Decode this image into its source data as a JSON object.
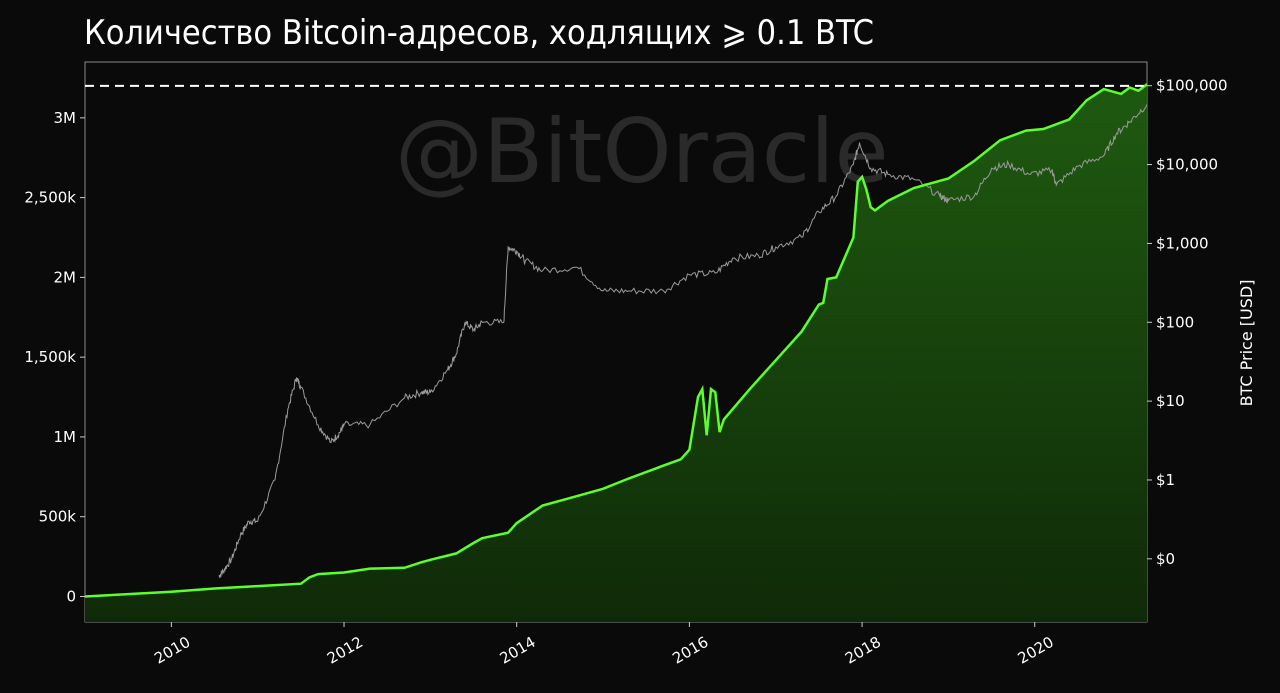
{
  "title": "Количество Bitcoin-адресов, ходлящих ⩾ 0.1 BTC",
  "watermark": "@BitOracle",
  "colors": {
    "background": "#0a0a0a",
    "addresses_line": "#5dff2a",
    "addresses_fill": "#1f5a10",
    "price_line": "#9a9a9a",
    "ath_line": "#ffffff",
    "frame": "#888888"
  },
  "chart_data": {
    "type": "area",
    "title": "Количество Bitcoin-адресов, ходлящих ⩾ 0.1 BTC",
    "x_range": [
      2009.0,
      2021.3
    ],
    "x_ticks": [
      "2010",
      "2012",
      "2014",
      "2016",
      "2018",
      "2020"
    ],
    "y_left": {
      "label": "",
      "range": [
        -160000,
        3350000
      ],
      "ticks": [
        "0",
        "500k",
        "1M",
        "1,500k",
        "2M",
        "2,500k",
        "3M"
      ],
      "tick_values": [
        0,
        500000,
        1000000,
        1500000,
        2000000,
        2500000,
        3000000
      ]
    },
    "y_right": {
      "label": "BTC Price [USD]",
      "scale": "log",
      "ticks": [
        "$0",
        "$1",
        "$10",
        "$100",
        "$1,000",
        "$10,000",
        "$100,000"
      ],
      "tick_values": [
        0.1,
        1,
        10,
        100,
        1000,
        10000,
        100000
      ]
    },
    "ath_level": 3200000,
    "grid": false,
    "series": [
      {
        "key": "addresses",
        "axis": "left",
        "x": [
          2009.0,
          2009.5,
          2010.0,
          2010.5,
          2011.0,
          2011.5,
          2011.6,
          2011.7,
          2012.0,
          2012.3,
          2012.7,
          2012.9,
          2013.0,
          2013.3,
          2013.5,
          2013.6,
          2013.9,
          2014.0,
          2014.3,
          2014.6,
          2015.0,
          2015.3,
          2015.6,
          2015.7,
          2015.9,
          2016.0,
          2016.1,
          2016.15,
          2016.2,
          2016.25,
          2016.3,
          2016.35,
          2016.4,
          2016.7,
          2017.0,
          2017.3,
          2017.5,
          2017.55,
          2017.6,
          2017.7,
          2017.9,
          2017.95,
          2018.0,
          2018.05,
          2018.1,
          2018.15,
          2018.3,
          2018.6,
          2019.0,
          2019.3,
          2019.6,
          2019.9,
          2020.1,
          2020.4,
          2020.6,
          2020.8,
          2021.0,
          2021.1,
          2021.2,
          2021.3
        ],
        "values": [
          0,
          15000,
          30000,
          50000,
          65000,
          80000,
          120000,
          140000,
          150000,
          175000,
          180000,
          215000,
          230000,
          270000,
          335000,
          365000,
          400000,
          460000,
          570000,
          615000,
          675000,
          740000,
          800000,
          820000,
          860000,
          920000,
          1250000,
          1300000,
          1010000,
          1300000,
          1280000,
          1030000,
          1110000,
          1300000,
          1480000,
          1660000,
          1830000,
          1840000,
          1990000,
          2000000,
          2250000,
          2600000,
          2630000,
          2550000,
          2440000,
          2420000,
          2480000,
          2560000,
          2620000,
          2730000,
          2860000,
          2920000,
          2930000,
          2990000,
          3110000,
          3180000,
          3150000,
          3190000,
          3170000,
          3210000
        ]
      },
      {
        "key": "price",
        "axis": "right",
        "x": [
          2010.55,
          2010.6,
          2010.7,
          2010.8,
          2010.9,
          2011.0,
          2011.2,
          2011.35,
          2011.45,
          2011.5,
          2011.7,
          2011.85,
          2011.95,
          2012.0,
          2012.3,
          2012.7,
          2012.9,
          2013.0,
          2013.2,
          2013.3,
          2013.4,
          2013.5,
          2013.6,
          2013.85,
          2013.9,
          2014.0,
          2014.1,
          2014.3,
          2014.7,
          2015.0,
          2015.3,
          2015.7,
          2016.0,
          2016.3,
          2016.5,
          2016.8,
          2017.0,
          2017.3,
          2017.5,
          2017.7,
          2017.9,
          2017.97,
          2018.1,
          2018.3,
          2018.6,
          2018.9,
          2019.0,
          2019.3,
          2019.5,
          2019.7,
          2019.95,
          2020.2,
          2020.25,
          2020.5,
          2020.8,
          2020.95,
          2021.1,
          2021.3
        ],
        "values": [
          0.06,
          0.07,
          0.1,
          0.2,
          0.3,
          0.3,
          1,
          8,
          20,
          15,
          5,
          3,
          4,
          5,
          5,
          11,
          13,
          13,
          25,
          40,
          100,
          80,
          100,
          100,
          900,
          800,
          600,
          450,
          500,
          250,
          250,
          250,
          400,
          420,
          650,
          700,
          900,
          1200,
          2500,
          4000,
          10000,
          19000,
          9000,
          7500,
          6500,
          4000,
          3500,
          4000,
          9000,
          10000,
          7500,
          8500,
          5500,
          9500,
          13000,
          25000,
          35000,
          58000
        ]
      }
    ]
  }
}
